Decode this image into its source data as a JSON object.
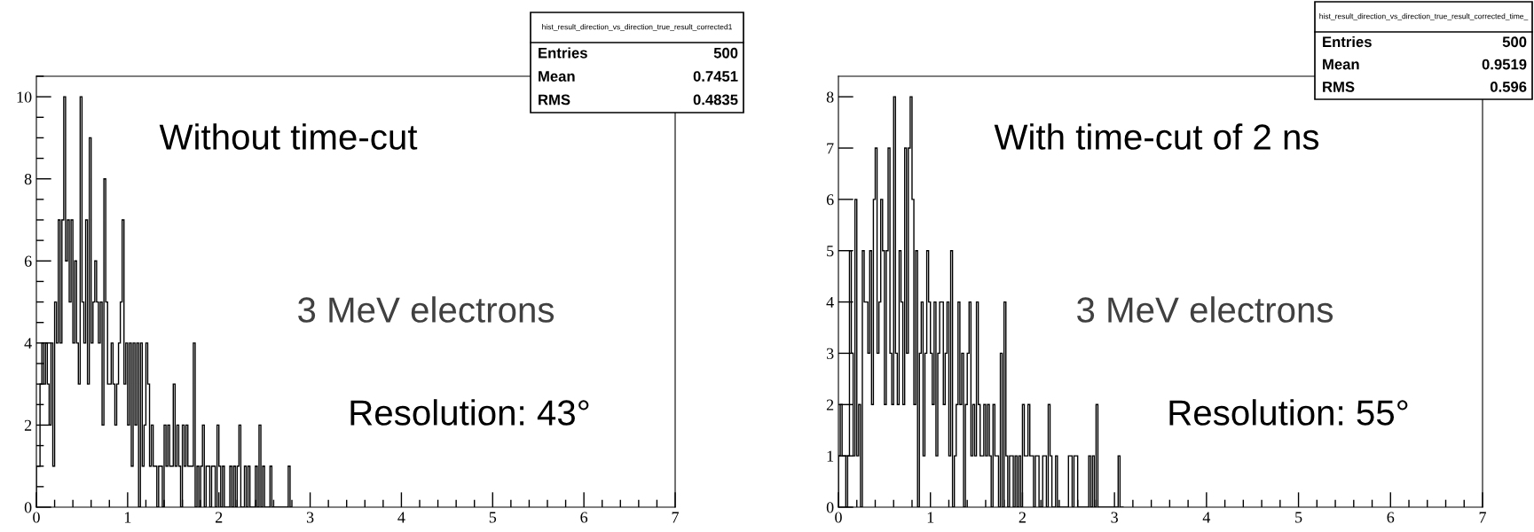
{
  "chart_data": [
    {
      "type": "histogram",
      "title": "Without time-cut",
      "color": "#000000",
      "bins": [
        0,
        0.02,
        0.04,
        0.06,
        0.08,
        0.1,
        0.12,
        0.14,
        0.16,
        0.18,
        0.2,
        0.22,
        0.24,
        0.26,
        0.28,
        0.3,
        0.32,
        0.34,
        0.36,
        0.38,
        0.4,
        0.42,
        0.44,
        0.46,
        0.48,
        0.5,
        0.52,
        0.54,
        0.56,
        0.58,
        0.6,
        0.62,
        0.64,
        0.66,
        0.68,
        0.7,
        0.72,
        0.74,
        0.76,
        0.78,
        0.8,
        0.82,
        0.84,
        0.86,
        0.88,
        0.9,
        0.92,
        0.94,
        0.96,
        0.98,
        1,
        1.02,
        1.04,
        1.06,
        1.08,
        1.1,
        1.12,
        1.14,
        1.16,
        1.18,
        1.2,
        1.22,
        1.24,
        1.26,
        1.28,
        1.3,
        1.32,
        1.34,
        1.36,
        1.38,
        1.4,
        1.42,
        1.44,
        1.46,
        1.48,
        1.5,
        1.52,
        1.54,
        1.56,
        1.58,
        1.6,
        1.62,
        1.64,
        1.66,
        1.68,
        1.7,
        1.72,
        1.74,
        1.76,
        1.78,
        1.8,
        1.82,
        1.84,
        1.86,
        1.88,
        1.9,
        1.92,
        1.94,
        1.96,
        1.98,
        2,
        2.02,
        2.04,
        2.06,
        2.08,
        2.1,
        2.12,
        2.14,
        2.16,
        2.18,
        2.2,
        2.22,
        2.24,
        2.26,
        2.28,
        2.3,
        2.32,
        2.34,
        2.36,
        2.38,
        2.4,
        2.42,
        2.44,
        2.46,
        2.48,
        2.5,
        2.52,
        2.54,
        2.56,
        2.58,
        2.6,
        2.62,
        2.64,
        2.66,
        2.68,
        2.7,
        2.72,
        2.74,
        2.76,
        2.78,
        2.8
      ],
      "values": [
        1,
        1,
        3,
        4,
        3,
        4,
        3,
        2,
        4,
        1,
        5,
        4,
        7,
        4,
        7,
        10,
        6,
        7,
        5,
        7,
        4,
        6,
        4,
        3,
        10,
        5,
        4,
        7,
        3,
        9,
        4,
        5,
        6,
        5,
        4,
        5,
        2,
        8,
        5,
        3,
        3,
        4,
        3,
        2,
        3,
        4,
        5,
        7,
        3,
        4,
        2,
        4,
        1,
        4,
        2,
        4,
        0,
        4,
        1,
        2,
        4,
        3,
        1,
        2,
        1,
        1,
        0,
        1,
        1,
        0,
        2,
        1,
        2,
        1,
        1,
        3,
        1,
        2,
        1,
        0,
        2,
        1,
        2,
        1,
        1,
        1,
        4,
        0,
        1,
        0,
        1,
        2,
        0,
        1,
        1,
        0,
        1,
        1,
        0,
        2,
        1,
        0,
        1,
        0,
        0,
        0,
        1,
        0,
        1,
        0,
        1,
        2,
        0,
        0,
        1,
        0,
        1,
        0,
        0,
        0,
        1,
        0,
        2,
        0,
        1,
        0,
        0,
        0,
        1,
        0,
        0,
        0,
        0,
        0,
        0,
        0,
        0,
        0,
        1,
        0
      ],
      "xlim": [
        0,
        7
      ],
      "xticks": [
        0,
        1,
        2,
        3,
        4,
        5,
        6,
        7
      ],
      "ylim": [
        0,
        10.5
      ],
      "yticks": [
        0,
        2,
        4,
        6,
        8,
        10
      ],
      "grid": false,
      "annotations": [
        "3 MeV electrons",
        "Resolution: 43°",
        "hist_result_direction_vs_direction_true_result_corrected1",
        "Entries",
        "500",
        "Mean",
        "0.7451",
        "RMS",
        "0.4835"
      ]
    },
    {
      "type": "histogram",
      "title": "With time-cut of 2 ns",
      "color": "#000000",
      "bins": [
        0,
        0.02,
        0.04,
        0.06,
        0.08,
        0.1,
        0.12,
        0.14,
        0.16,
        0.18,
        0.2,
        0.22,
        0.24,
        0.26,
        0.28,
        0.3,
        0.32,
        0.34,
        0.36,
        0.38,
        0.4,
        0.42,
        0.44,
        0.46,
        0.48,
        0.5,
        0.52,
        0.54,
        0.56,
        0.58,
        0.6,
        0.62,
        0.64,
        0.66,
        0.68,
        0.7,
        0.72,
        0.74,
        0.76,
        0.78,
        0.8,
        0.82,
        0.84,
        0.86,
        0.88,
        0.9,
        0.92,
        0.94,
        0.96,
        0.98,
        1,
        1.02,
        1.04,
        1.06,
        1.08,
        1.1,
        1.12,
        1.14,
        1.16,
        1.18,
        1.2,
        1.22,
        1.24,
        1.26,
        1.28,
        1.3,
        1.32,
        1.34,
        1.36,
        1.38,
        1.4,
        1.42,
        1.44,
        1.46,
        1.48,
        1.5,
        1.52,
        1.54,
        1.56,
        1.58,
        1.6,
        1.62,
        1.64,
        1.66,
        1.68,
        1.7,
        1.72,
        1.74,
        1.76,
        1.78,
        1.8,
        1.82,
        1.84,
        1.86,
        1.88,
        1.9,
        1.92,
        1.94,
        1.96,
        1.98,
        2,
        2.02,
        2.04,
        2.06,
        2.08,
        2.1,
        2.12,
        2.14,
        2.16,
        2.18,
        2.2,
        2.22,
        2.24,
        2.26,
        2.28,
        2.3,
        2.32,
        2.34,
        2.36,
        2.38,
        2.4,
        2.42,
        2.44,
        2.46,
        2.48,
        2.5,
        2.52,
        2.54,
        2.56,
        2.58,
        2.6,
        2.62,
        2.64,
        2.66,
        2.68,
        2.7,
        2.72,
        2.74,
        2.76,
        2.78,
        2.8,
        2.82,
        2.84,
        2.86,
        2.88,
        2.9,
        2.92,
        2.94,
        2.96,
        2.98,
        3,
        3.02,
        3.04,
        3.06,
        3.08,
        3.1
      ],
      "values": [
        1,
        2,
        1,
        1,
        0,
        1,
        5,
        3,
        1,
        6,
        1,
        2,
        0,
        5,
        4,
        4,
        3,
        5,
        2,
        6,
        7,
        3,
        4,
        6,
        5,
        2,
        5,
        7,
        3,
        2,
        8,
        3,
        2,
        5,
        4,
        2,
        7,
        3,
        7,
        8,
        6,
        2,
        5,
        0,
        3,
        4,
        1,
        3,
        5,
        4,
        3,
        2,
        4,
        1,
        3,
        4,
        4,
        2,
        3,
        4,
        1,
        5,
        0,
        1,
        2,
        4,
        2,
        3,
        0,
        2,
        3,
        4,
        1,
        2,
        1,
        4,
        2,
        1,
        1,
        2,
        1,
        2,
        1,
        0,
        2,
        1,
        1,
        0,
        3,
        0,
        4,
        1,
        0,
        1,
        1,
        0,
        1,
        0,
        1,
        0,
        2,
        1,
        1,
        2,
        1,
        1,
        0,
        1,
        1,
        0,
        0,
        1,
        1,
        0,
        2,
        1,
        0,
        0,
        1,
        0,
        0,
        0,
        0,
        0,
        0,
        1,
        1,
        0,
        1,
        1,
        0,
        0,
        0,
        0,
        0,
        0,
        1,
        0,
        1,
        0,
        2,
        0,
        0,
        0,
        0,
        0,
        0,
        0,
        0,
        0,
        0,
        0,
        1,
        0,
        0
      ],
      "xlim": [
        0,
        7
      ],
      "xticks": [
        0,
        1,
        2,
        3,
        4,
        5,
        6,
        7
      ],
      "ylim": [
        0,
        8.4
      ],
      "yticks": [
        0,
        1,
        2,
        3,
        4,
        5,
        6,
        7,
        8
      ],
      "grid": false,
      "annotations": [
        "3 MeV electrons",
        "Resolution: 55°",
        "hist_result_direction_vs_direction_true_result_corrected_time_",
        "Entries",
        "500",
        "Mean",
        "0.9519",
        "RMS",
        "0.596"
      ]
    }
  ]
}
